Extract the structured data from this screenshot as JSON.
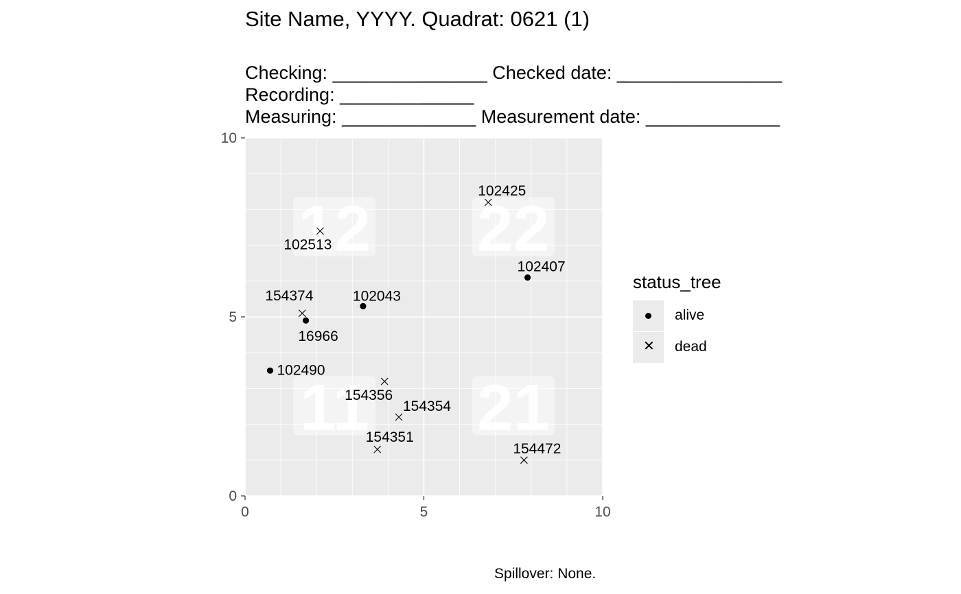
{
  "title": "Site Name, YYYY. Quadrat: 0621 (1)",
  "subtitle": {
    "line1": "Checking: _______________ Checked date: ________________",
    "line2": "Recording: _____________",
    "line3": "Measuring: _____________ Measurement date: _____________"
  },
  "caption": "Spillover: None.",
  "legend": {
    "title": "status_tree",
    "items": [
      {
        "label": "alive",
        "shape": "dot"
      },
      {
        "label": "dead",
        "shape": "x"
      }
    ]
  },
  "chart_data": {
    "type": "scatter",
    "xlim": [
      0,
      10
    ],
    "ylim": [
      0,
      10
    ],
    "xticks": [
      0,
      5,
      10
    ],
    "yticks": [
      0,
      5,
      10
    ],
    "grid": true,
    "legend_position": "right",
    "quadrant_labels": [
      {
        "label": "12",
        "x": 2.5,
        "y": 7.5
      },
      {
        "label": "22",
        "x": 7.5,
        "y": 7.5
      },
      {
        "label": "11",
        "x": 2.5,
        "y": 2.5
      },
      {
        "label": "21",
        "x": 7.5,
        "y": 2.5
      }
    ],
    "points": [
      {
        "tag": "102425",
        "x": 6.8,
        "y": 8.2,
        "status": "dead"
      },
      {
        "tag": "102513",
        "x": 2.1,
        "y": 7.4,
        "status": "dead"
      },
      {
        "tag": "102407",
        "x": 7.9,
        "y": 6.1,
        "status": "alive"
      },
      {
        "tag": "102043",
        "x": 3.3,
        "y": 5.3,
        "status": "alive"
      },
      {
        "tag": "154374",
        "x": 1.6,
        "y": 5.1,
        "status": "dead"
      },
      {
        "tag": "16966",
        "x": 1.7,
        "y": 4.9,
        "status": "alive"
      },
      {
        "tag": "102490",
        "x": 0.7,
        "y": 3.5,
        "status": "alive"
      },
      {
        "tag": "154356",
        "x": 3.9,
        "y": 3.2,
        "status": "dead"
      },
      {
        "tag": "154354",
        "x": 4.3,
        "y": 2.2,
        "status": "dead"
      },
      {
        "tag": "154351",
        "x": 3.7,
        "y": 1.3,
        "status": "dead"
      },
      {
        "tag": "154472",
        "x": 7.8,
        "y": 1.0,
        "status": "dead"
      }
    ]
  }
}
